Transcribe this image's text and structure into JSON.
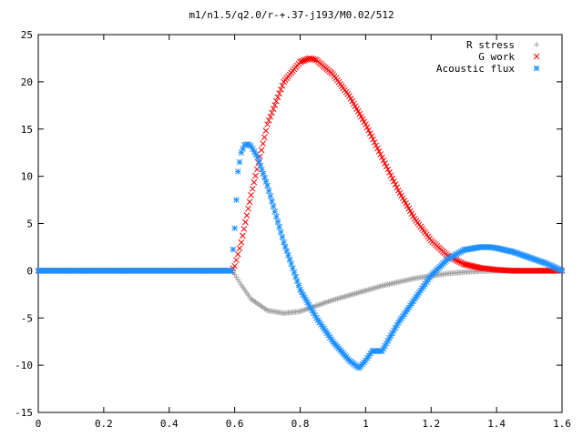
{
  "chart_data": {
    "type": "scatter",
    "title": "m1/n1.5/q2.0/r-+.37-j193/M0.02/512",
    "xlabel": "",
    "ylabel": "",
    "xlim": [
      0,
      1.6
    ],
    "ylim": [
      -15,
      25
    ],
    "xticks": [
      "0",
      "0.2",
      "0.4",
      "0.6",
      "0.8",
      "1",
      "1.2",
      "1.4",
      "1.6"
    ],
    "yticks": [
      "25",
      "20",
      "15",
      "10",
      "5",
      "0",
      "-5",
      "-10",
      "-15"
    ],
    "grid": false,
    "legend_position": "top-right",
    "series": [
      {
        "name": "R stress",
        "marker": "plus",
        "color": "#a0a0a0",
        "x": [
          0.0,
          0.1,
          0.2,
          0.3,
          0.4,
          0.5,
          0.59,
          0.6,
          0.62,
          0.65,
          0.7,
          0.75,
          0.8,
          0.85,
          0.9,
          0.95,
          1.0,
          1.05,
          1.1,
          1.15,
          1.2,
          1.25,
          1.3,
          1.35,
          1.4,
          1.45,
          1.5,
          1.55,
          1.6
        ],
        "y": [
          0,
          0,
          0,
          0,
          0,
          0,
          0,
          -0.4,
          -1.5,
          -3.0,
          -4.2,
          -4.5,
          -4.3,
          -3.7,
          -3.1,
          -2.6,
          -2.1,
          -1.6,
          -1.2,
          -0.8,
          -0.55,
          -0.3,
          -0.15,
          -0.05,
          0,
          0,
          0,
          0,
          0
        ]
      },
      {
        "name": "G work",
        "marker": "cross",
        "color": "#ff0000",
        "x": [
          0.0,
          0.1,
          0.2,
          0.3,
          0.4,
          0.5,
          0.59,
          0.6,
          0.62,
          0.65,
          0.7,
          0.75,
          0.8,
          0.83,
          0.85,
          0.9,
          0.95,
          1.0,
          1.05,
          1.1,
          1.15,
          1.2,
          1.25,
          1.3,
          1.35,
          1.4,
          1.45,
          1.5,
          1.55,
          1.6
        ],
        "y": [
          0,
          0,
          0,
          0,
          0,
          0,
          0,
          0.5,
          3.0,
          8.0,
          15.5,
          20.0,
          22.1,
          22.5,
          22.3,
          20.8,
          18.5,
          15.5,
          12.0,
          8.5,
          5.5,
          3.2,
          1.6,
          0.7,
          0.3,
          0.1,
          0,
          0,
          0,
          0
        ]
      },
      {
        "name": "Acoustic flux",
        "marker": "star",
        "color": "#1e90ff",
        "x": [
          0.0,
          0.1,
          0.2,
          0.3,
          0.4,
          0.5,
          0.59,
          0.6,
          0.61,
          0.62,
          0.63,
          0.64,
          0.65,
          0.67,
          0.7,
          0.75,
          0.8,
          0.85,
          0.9,
          0.95,
          0.98,
          1.0,
          1.02,
          1.05,
          1.1,
          1.15,
          1.2,
          1.25,
          1.3,
          1.35,
          1.38,
          1.4,
          1.45,
          1.5,
          1.55,
          1.6
        ],
        "y": [
          0,
          0,
          0,
          0,
          0,
          0,
          0,
          4.5,
          10.5,
          12.5,
          13.3,
          13.4,
          13.2,
          12.0,
          9.0,
          3.0,
          -2.0,
          -5.0,
          -7.5,
          -9.5,
          -10.3,
          -9.5,
          -8.5,
          -8.5,
          -5.5,
          -3.0,
          -0.5,
          1.2,
          2.2,
          2.5,
          2.5,
          2.4,
          2.0,
          1.4,
          0.8,
          0.0
        ]
      }
    ]
  }
}
